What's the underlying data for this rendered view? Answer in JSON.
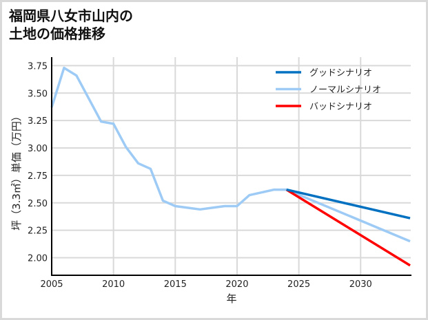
{
  "title": {
    "line1": "福岡県八女市山内の",
    "line2": "土地の価格推移"
  },
  "colors": {
    "good": "#0070c0",
    "normal": "#9dcbf5",
    "bad": "#ff0000",
    "grid": "#d9d9d9",
    "axis": "#000000"
  },
  "chart_data": {
    "type": "line",
    "title": "福岡県八女市山内の土地の価格推移",
    "xlabel": "年",
    "ylabel": "坪（3.3㎡）単価（万円）",
    "xlim": [
      2005,
      2034
    ],
    "ylim": [
      1.85,
      3.83
    ],
    "x_ticks": [
      2005,
      2010,
      2015,
      2020,
      2025,
      2030
    ],
    "y_ticks": [
      2.0,
      2.25,
      2.5,
      2.75,
      3.0,
      3.25,
      3.5,
      3.75
    ],
    "y_tick_labels": [
      "2.00",
      "2.25",
      "2.50",
      "2.75",
      "3.00",
      "3.25",
      "3.50",
      "3.75"
    ],
    "grid": true,
    "legend_position": "upper right",
    "series": [
      {
        "name": "グッドシナリオ",
        "color": "#0070c0",
        "x": [
          2024,
          2034
        ],
        "values": [
          2.62,
          2.36
        ]
      },
      {
        "name": "ノーマルシナリオ",
        "color": "#9dcbf5",
        "x": [
          2005,
          2006,
          2007,
          2008,
          2009,
          2010,
          2011,
          2012,
          2013,
          2014,
          2015,
          2016,
          2017,
          2018,
          2019,
          2020,
          2021,
          2022,
          2023,
          2024,
          2034
        ],
        "values": [
          3.37,
          3.73,
          3.66,
          3.45,
          3.24,
          3.22,
          3.01,
          2.86,
          2.81,
          2.52,
          2.47,
          2.455,
          2.44,
          2.455,
          2.47,
          2.47,
          2.57,
          2.595,
          2.62,
          2.62,
          2.15
        ]
      },
      {
        "name": "バッドシナリオ",
        "color": "#ff0000",
        "x": [
          2024,
          2034
        ],
        "values": [
          2.62,
          1.93
        ]
      }
    ]
  },
  "axes": {
    "xlabel": "年",
    "ylabel": "坪（3.3㎡）単価（万円）",
    "x_tick_labels": [
      "2005",
      "2010",
      "2015",
      "2020",
      "2025",
      "2030"
    ],
    "y_tick_labels": [
      "3.75",
      "3.50",
      "3.25",
      "3.00",
      "2.75",
      "2.50",
      "2.25",
      "2.00"
    ]
  },
  "legend": {
    "items": [
      {
        "label": "グッドシナリオ",
        "color": "#0070c0"
      },
      {
        "label": "ノーマルシナリオ",
        "color": "#9dcbf5"
      },
      {
        "label": "バッドシナリオ",
        "color": "#ff0000"
      }
    ]
  }
}
